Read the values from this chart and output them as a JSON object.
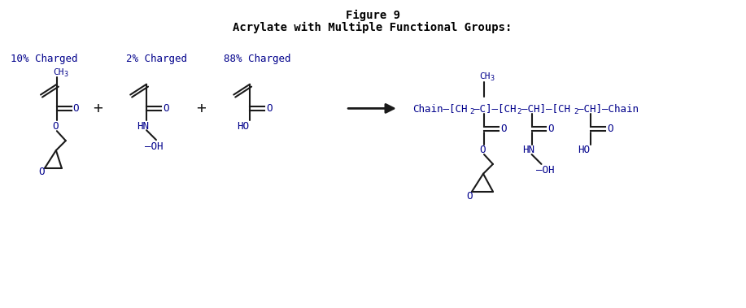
{
  "title_line1": "Figure 9",
  "title_line2": "Acrylate with Multiple Functional Groups:",
  "title_color": "#000000",
  "chem_color": "#00008b",
  "line_color": "#1a1a1a",
  "bg_color": "#ffffff",
  "label1": "10% Charged",
  "label2": "2% Charged",
  "label3": "88% Charged"
}
